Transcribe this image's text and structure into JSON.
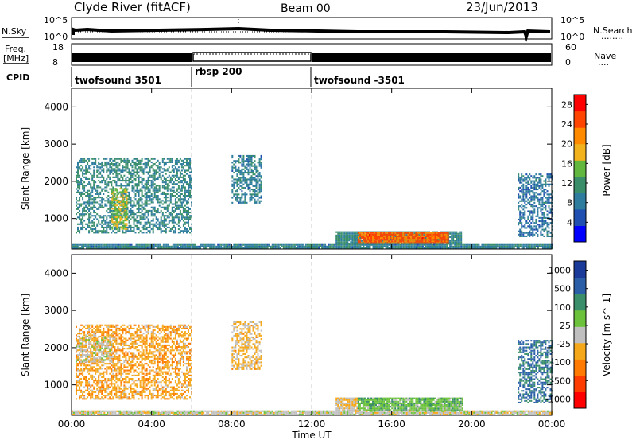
{
  "header": {
    "station": "Clyde River (fitACF)",
    "beam": "Beam 00",
    "date": "23/Jun/2013"
  },
  "noise_panel": {
    "left_label": "N.Sky",
    "left_ticks": [
      "10^5",
      "10^0"
    ],
    "right_ticks": [
      "10^5",
      "10^0"
    ],
    "right_label": "N.Search",
    "right_line": "........"
  },
  "freq_panel": {
    "left_label_1": "Freq.",
    "left_label_2": "[MHz]",
    "left_ticks": [
      "18",
      "8"
    ],
    "right_ticks": [
      "60",
      "0"
    ],
    "right_label": "Nave",
    "right_line": "...."
  },
  "cpid": {
    "label": "CPID",
    "segments": [
      {
        "name": "twofsound 3501",
        "start_hour": 0
      },
      {
        "name": "rbsp 200",
        "start_hour": 6
      },
      {
        "name": "twofsound -3501",
        "start_hour": 12
      }
    ]
  },
  "colors": {
    "power_scale": [
      "#0000ff",
      "#1f4fb0",
      "#2e7d9e",
      "#3a8f6a",
      "#62b83e",
      "#f2b21e",
      "#ff8a00",
      "#ff4500",
      "#ff0000"
    ],
    "velocity_scale": [
      "#1a3a9a",
      "#2a5fa8",
      "#3a8f6a",
      "#6cc23a",
      "#bfbfbf",
      "#f5a81a",
      "#ff7a00",
      "#ff3c00",
      "#ff0000"
    ]
  },
  "chart_data": [
    {
      "type": "heatmap",
      "panel": "power",
      "xlabel": "Time UT",
      "ylabel": "Slant Range [km]",
      "xlim_hours": [
        0,
        24
      ],
      "ylim": [
        180,
        4500
      ],
      "x_tick_labels": [
        "00:00",
        "04:00",
        "08:00",
        "12:00",
        "16:00",
        "20:00",
        "00:00"
      ],
      "y_tick_values": [
        1000,
        2000,
        3000,
        4000
      ],
      "colorbar_label": "Power [dB]",
      "colorbar_ticks": [
        4,
        8,
        12,
        16,
        20,
        24,
        28
      ],
      "colorbar_range": [
        0,
        30
      ],
      "regions": [
        {
          "t0": 0.2,
          "t1": 6.0,
          "r0": 600,
          "r1": 2600,
          "value": 10
        },
        {
          "t0": 2.0,
          "t1": 2.8,
          "r0": 700,
          "r1": 1800,
          "value": 16
        },
        {
          "t0": 8.0,
          "t1": 9.5,
          "r0": 1400,
          "r1": 2700,
          "value": 9
        },
        {
          "t0": 13.2,
          "t1": 19.5,
          "r0": 300,
          "r1": 650,
          "value": 10
        },
        {
          "t0": 14.3,
          "t1": 18.8,
          "r0": 320,
          "r1": 620,
          "value": 24
        },
        {
          "t0": 0.0,
          "t1": 24.0,
          "r0": 180,
          "r1": 300,
          "value": 9
        },
        {
          "t0": 22.3,
          "t1": 24.0,
          "r0": 500,
          "r1": 2200,
          "value": 8
        }
      ]
    },
    {
      "type": "heatmap",
      "panel": "velocity",
      "xlabel": "Time UT",
      "ylabel": "Slant Range [km]",
      "xlim_hours": [
        0,
        24
      ],
      "ylim": [
        180,
        4500
      ],
      "x_tick_labels": [
        "00:00",
        "04:00",
        "08:00",
        "12:00",
        "16:00",
        "20:00",
        "00:00"
      ],
      "y_tick_values": [
        1000,
        2000,
        3000,
        4000
      ],
      "colorbar_label": "Velocity [m s^-1]",
      "colorbar_ticks": [
        "1000",
        "500",
        "100",
        "25",
        "-25",
        "-100",
        "-500",
        "-1000"
      ],
      "colorbar_range": [
        -1200,
        1200
      ],
      "regions": [
        {
          "t0": 0.2,
          "t1": 6.0,
          "r0": 600,
          "r1": 2600,
          "value": -300
        },
        {
          "t0": 0.2,
          "t1": 2.0,
          "r0": 1600,
          "r1": 2300,
          "value": 0
        },
        {
          "t0": 8.0,
          "t1": 9.5,
          "r0": 1400,
          "r1": 2700,
          "value": -200
        },
        {
          "t0": 13.2,
          "t1": 14.3,
          "r0": 300,
          "r1": 650,
          "value": -150
        },
        {
          "t0": 14.3,
          "t1": 19.5,
          "r0": 300,
          "r1": 650,
          "value": 300
        },
        {
          "t0": 0.0,
          "t1": 24.0,
          "r0": 180,
          "r1": 300,
          "value": 0
        },
        {
          "t0": 22.3,
          "t1": 24.0,
          "r0": 500,
          "r1": 2200,
          "value": 700
        }
      ]
    }
  ]
}
